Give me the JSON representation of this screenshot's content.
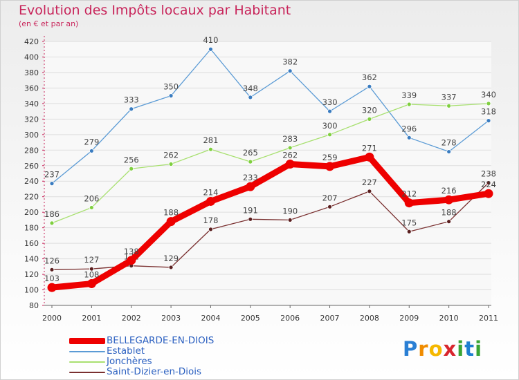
{
  "header": {
    "title": "Evolution des Impôts locaux par Habitant",
    "subtitle": "(en € et par an)"
  },
  "chart_data": {
    "type": "line",
    "title": "Evolution des Impôts locaux par Habitant",
    "subtitle": "(en € et par an)",
    "xlabel": "",
    "ylabel": "",
    "categories": [
      "2000",
      "2001",
      "2002",
      "2003",
      "2004",
      "2005",
      "2006",
      "2007",
      "2008",
      "2009",
      "2010",
      "2011"
    ],
    "ylim": [
      80,
      420
    ],
    "yticks": [
      80,
      100,
      120,
      140,
      160,
      180,
      200,
      220,
      240,
      260,
      280,
      300,
      320,
      340,
      360,
      380,
      400,
      420
    ],
    "grid": "horizontal",
    "legend_position": "bottom-left",
    "series": [
      {
        "name": "Establet",
        "color": "#5b9bd5",
        "dot_color": "#3a7cc0",
        "values": [
          237,
          279,
          333,
          350,
          410,
          348,
          382,
          330,
          362,
          296,
          278,
          318
        ]
      },
      {
        "name": "Jonchères",
        "color": "#a8e070",
        "dot_color": "#7fcf3f",
        "values": [
          186,
          206,
          256,
          262,
          281,
          265,
          283,
          300,
          320,
          339,
          337,
          340
        ]
      },
      {
        "name": "Saint-Dizier-en-Diois",
        "color": "#7a3030",
        "dot_color": "#5a1f1f",
        "values": [
          126,
          127,
          131,
          129,
          178,
          191,
          190,
          207,
          227,
          175,
          188,
          238
        ]
      },
      {
        "name": "BELLEGARDE-EN-DIOIS",
        "color": "#ee0000",
        "dot_color": "#ee0000",
        "bold": true,
        "values": [
          103,
          108,
          138,
          188,
          214,
          233,
          262,
          259,
          271,
          212,
          216,
          224
        ]
      }
    ],
    "legend_order": [
      "BELLEGARDE-EN-DIOIS",
      "Establet",
      "Jonchères",
      "Saint-Dizier-en-Diois"
    ]
  },
  "logo": {
    "letters": [
      "P",
      "r",
      "o",
      "x",
      "i",
      "t",
      "i"
    ],
    "colors": [
      "#2a7fd4",
      "#f08c00",
      "#f5b800",
      "#d8262e",
      "#3aa535",
      "#1e7fd0",
      "#3aa535"
    ]
  }
}
